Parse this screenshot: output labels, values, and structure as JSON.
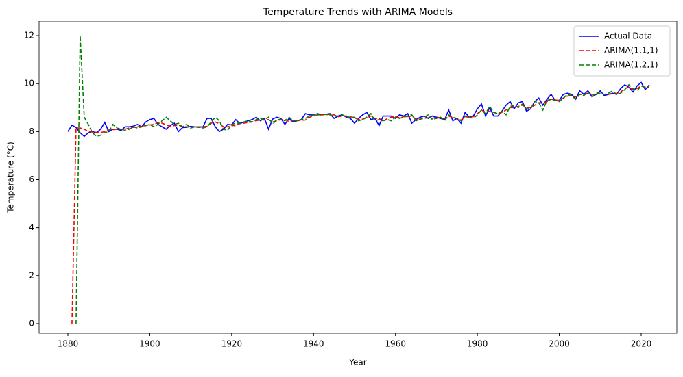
{
  "chart_data": {
    "type": "line",
    "title": "Temperature Trends with ARIMA Models",
    "x_label": "Year",
    "y_label": "Temperature (°C)",
    "x": [
      1880,
      1881,
      1882,
      1883,
      1884,
      1885,
      1886,
      1887,
      1888,
      1889,
      1890,
      1891,
      1892,
      1893,
      1894,
      1895,
      1896,
      1897,
      1898,
      1899,
      1900,
      1901,
      1902,
      1903,
      1904,
      1905,
      1906,
      1907,
      1908,
      1909,
      1910,
      1911,
      1912,
      1913,
      1914,
      1915,
      1916,
      1917,
      1918,
      1919,
      1920,
      1921,
      1922,
      1923,
      1924,
      1925,
      1926,
      1927,
      1928,
      1929,
      1930,
      1931,
      1932,
      1933,
      1934,
      1935,
      1936,
      1937,
      1938,
      1939,
      1940,
      1941,
      1942,
      1943,
      1944,
      1945,
      1946,
      1947,
      1948,
      1949,
      1950,
      1951,
      1952,
      1953,
      1954,
      1955,
      1956,
      1957,
      1958,
      1959,
      1960,
      1961,
      1962,
      1963,
      1964,
      1965,
      1966,
      1967,
      1968,
      1969,
      1970,
      1971,
      1972,
      1973,
      1974,
      1975,
      1976,
      1977,
      1978,
      1979,
      1980,
      1981,
      1982,
      1983,
      1984,
      1985,
      1986,
      1987,
      1988,
      1989,
      1990,
      1991,
      1992,
      1993,
      1994,
      1995,
      1996,
      1997,
      1998,
      1999,
      2000,
      2001,
      2002,
      2003,
      2004,
      2005,
      2006,
      2007,
      2008,
      2009,
      2010,
      2011,
      2012,
      2013,
      2014,
      2015,
      2016,
      2017,
      2018,
      2019,
      2020,
      2021,
      2022
    ],
    "series": [
      {
        "name": "Actual Data",
        "color": "#0000ff",
        "dash": "solid",
        "values": [
          8.0,
          8.27,
          8.17,
          7.95,
          7.8,
          7.95,
          8.0,
          7.95,
          8.1,
          8.38,
          8.0,
          8.1,
          8.1,
          8.05,
          8.2,
          8.2,
          8.23,
          8.3,
          8.2,
          8.4,
          8.5,
          8.55,
          8.3,
          8.2,
          8.1,
          8.25,
          8.35,
          8.0,
          8.17,
          8.18,
          8.22,
          8.2,
          8.18,
          8.2,
          8.55,
          8.55,
          8.2,
          8.0,
          8.1,
          8.3,
          8.28,
          8.5,
          8.33,
          8.4,
          8.45,
          8.5,
          8.6,
          8.45,
          8.55,
          8.1,
          8.52,
          8.6,
          8.55,
          8.3,
          8.55,
          8.4,
          8.45,
          8.5,
          8.75,
          8.7,
          8.7,
          8.75,
          8.7,
          8.72,
          8.75,
          8.55,
          8.65,
          8.7,
          8.6,
          8.55,
          8.35,
          8.55,
          8.7,
          8.8,
          8.5,
          8.55,
          8.25,
          8.65,
          8.65,
          8.65,
          8.55,
          8.7,
          8.65,
          8.75,
          8.35,
          8.5,
          8.6,
          8.65,
          8.55,
          8.65,
          8.6,
          8.55,
          8.5,
          8.9,
          8.45,
          8.55,
          8.35,
          8.8,
          8.6,
          8.65,
          8.95,
          9.15,
          8.65,
          9.0,
          8.65,
          8.65,
          8.85,
          9.1,
          9.25,
          8.95,
          9.2,
          9.25,
          8.85,
          8.95,
          9.25,
          9.4,
          9.1,
          9.35,
          9.55,
          9.3,
          9.3,
          9.55,
          9.6,
          9.55,
          9.35,
          9.7,
          9.55,
          9.7,
          9.45,
          9.55,
          9.7,
          9.5,
          9.55,
          9.6,
          9.55,
          9.8,
          9.95,
          9.85,
          9.65,
          9.9,
          10.05,
          9.75,
          9.95
        ]
      },
      {
        "name": "ARIMA(1,1,1)",
        "color": "#ff0000",
        "dash": "dashed",
        "values": [
          null,
          0,
          8.15,
          8.15,
          8.1,
          8.0,
          7.98,
          7.97,
          7.96,
          8.0,
          8.1,
          8.08,
          8.1,
          8.1,
          8.1,
          8.15,
          8.18,
          8.2,
          8.23,
          8.25,
          8.28,
          8.3,
          8.38,
          8.35,
          8.28,
          8.22,
          8.25,
          8.27,
          8.2,
          8.2,
          8.18,
          8.2,
          8.2,
          8.2,
          8.22,
          8.35,
          8.4,
          8.33,
          8.2,
          8.2,
          8.25,
          8.25,
          8.35,
          8.35,
          8.38,
          8.4,
          8.45,
          8.5,
          8.48,
          8.5,
          8.4,
          8.45,
          8.5,
          8.5,
          8.42,
          8.48,
          8.45,
          8.47,
          8.48,
          8.6,
          8.65,
          8.68,
          8.7,
          8.7,
          8.72,
          8.7,
          8.62,
          8.65,
          8.65,
          8.62,
          8.58,
          8.5,
          8.52,
          8.6,
          8.65,
          8.55,
          8.55,
          8.42,
          8.55,
          8.6,
          8.62,
          8.58,
          8.62,
          8.62,
          8.65,
          8.52,
          8.52,
          8.55,
          8.58,
          8.55,
          8.6,
          8.58,
          8.55,
          8.65,
          8.58,
          8.55,
          8.48,
          8.62,
          8.6,
          8.62,
          8.75,
          8.9,
          8.8,
          8.85,
          8.8,
          8.75,
          8.8,
          8.9,
          9.0,
          9.0,
          9.05,
          9.1,
          9.0,
          9.0,
          9.1,
          9.2,
          9.18,
          9.25,
          9.35,
          9.32,
          9.3,
          9.4,
          9.48,
          9.5,
          9.45,
          9.55,
          9.55,
          9.6,
          9.55,
          9.55,
          9.6,
          9.55,
          9.55,
          9.58,
          9.58,
          9.65,
          9.8,
          9.85,
          9.75,
          9.8,
          9.9,
          9.85,
          9.85
        ]
      },
      {
        "name": "ARIMA(1,2,1)",
        "color": "#008000",
        "dash": "dashed",
        "values": [
          null,
          null,
          0,
          12,
          8.6,
          8.3,
          7.95,
          7.8,
          7.85,
          7.95,
          8.0,
          8.3,
          8.15,
          8.1,
          8.05,
          8.1,
          8.2,
          8.15,
          8.2,
          8.25,
          8.3,
          8.2,
          8.3,
          8.45,
          8.6,
          8.45,
          8.3,
          8.35,
          8.2,
          8.3,
          8.15,
          8.2,
          8.18,
          8.15,
          8.2,
          8.4,
          8.6,
          8.45,
          8.1,
          8.05,
          8.3,
          8.35,
          8.35,
          8.4,
          8.45,
          8.4,
          8.5,
          8.55,
          8.5,
          8.6,
          8.3,
          8.5,
          8.5,
          8.45,
          8.6,
          8.45,
          8.45,
          8.5,
          8.55,
          8.65,
          8.7,
          8.7,
          8.7,
          8.72,
          8.7,
          8.65,
          8.65,
          8.7,
          8.62,
          8.6,
          8.6,
          8.45,
          8.5,
          8.6,
          8.75,
          8.45,
          8.5,
          8.45,
          8.5,
          8.45,
          8.6,
          8.55,
          8.6,
          8.65,
          8.7,
          8.45,
          8.5,
          8.6,
          8.7,
          8.5,
          8.55,
          8.6,
          8.45,
          8.7,
          8.6,
          8.55,
          8.45,
          8.65,
          8.6,
          8.55,
          8.7,
          8.9,
          8.75,
          9.05,
          8.8,
          8.75,
          8.85,
          8.7,
          9.05,
          9.1,
          9.0,
          9.15,
          8.95,
          8.95,
          9.25,
          9.2,
          8.9,
          9.3,
          9.35,
          9.3,
          9.25,
          9.4,
          9.55,
          9.5,
          9.35,
          9.55,
          9.5,
          9.65,
          9.45,
          9.6,
          9.6,
          9.55,
          9.6,
          9.7,
          9.55,
          9.6,
          9.75,
          9.95,
          9.8,
          9.7,
          9.9,
          9.85,
          9.9
        ]
      }
    ],
    "xlim": [
      1872.97,
      2028.71
    ],
    "xticks": [
      1880,
      1900,
      1920,
      1940,
      1960,
      1980,
      2000,
      2020
    ],
    "ylim": [
      -0.4,
      12.6
    ],
    "yticks": [
      0,
      2,
      4,
      6,
      8,
      10,
      12
    ],
    "grid": false,
    "legend": "upper right"
  }
}
